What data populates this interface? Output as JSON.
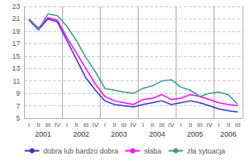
{
  "chart_data": {
    "type": "line",
    "categories": [
      "I",
      "II",
      "III",
      "IV",
      "I",
      "II",
      "III",
      "IV",
      "I",
      "II",
      "III",
      "IV",
      "I",
      "II",
      "III",
      "IV",
      "I",
      "II",
      "III",
      "IV",
      "I",
      "II",
      "III"
    ],
    "series": [
      {
        "name": "dobra lub bardzo dobra",
        "color": "#3333cc",
        "values": [
          20.8,
          19.2,
          21.0,
          20.5,
          17.5,
          14.5,
          11.5,
          9.5,
          7.8,
          7.2,
          7.0,
          6.8,
          7.2,
          7.5,
          7.8,
          7.2,
          7.5,
          7.8,
          7.5,
          7.0,
          6.5,
          6.2,
          6.0
        ]
      },
      {
        "name": "słaba",
        "color": "#ff00ff",
        "values": [
          21.0,
          19.5,
          21.2,
          20.8,
          18.0,
          15.5,
          13.0,
          10.5,
          8.5,
          7.8,
          7.5,
          7.2,
          8.0,
          8.2,
          8.8,
          8.0,
          8.2,
          8.8,
          8.5,
          8.0,
          7.5,
          7.2,
          7.0
        ]
      },
      {
        "name": "zła sytuacja",
        "color": "#3a9990",
        "values": [
          21.0,
          19.2,
          21.8,
          21.5,
          19.8,
          17.5,
          14.8,
          12.5,
          9.8,
          9.5,
          9.2,
          9.0,
          9.8,
          10.2,
          11.0,
          11.2,
          10.0,
          9.5,
          8.5,
          9.0,
          9.2,
          8.8,
          7.2
        ]
      }
    ],
    "annotations": [
      "2001",
      "2002",
      "2003",
      "2004",
      "2005",
      "2006"
    ],
    "ylim": [
      5,
      23
    ],
    "yticks": [
      5,
      7,
      9,
      11,
      13,
      15,
      17,
      19,
      21,
      23
    ],
    "grid": true,
    "legend": "bottom"
  }
}
